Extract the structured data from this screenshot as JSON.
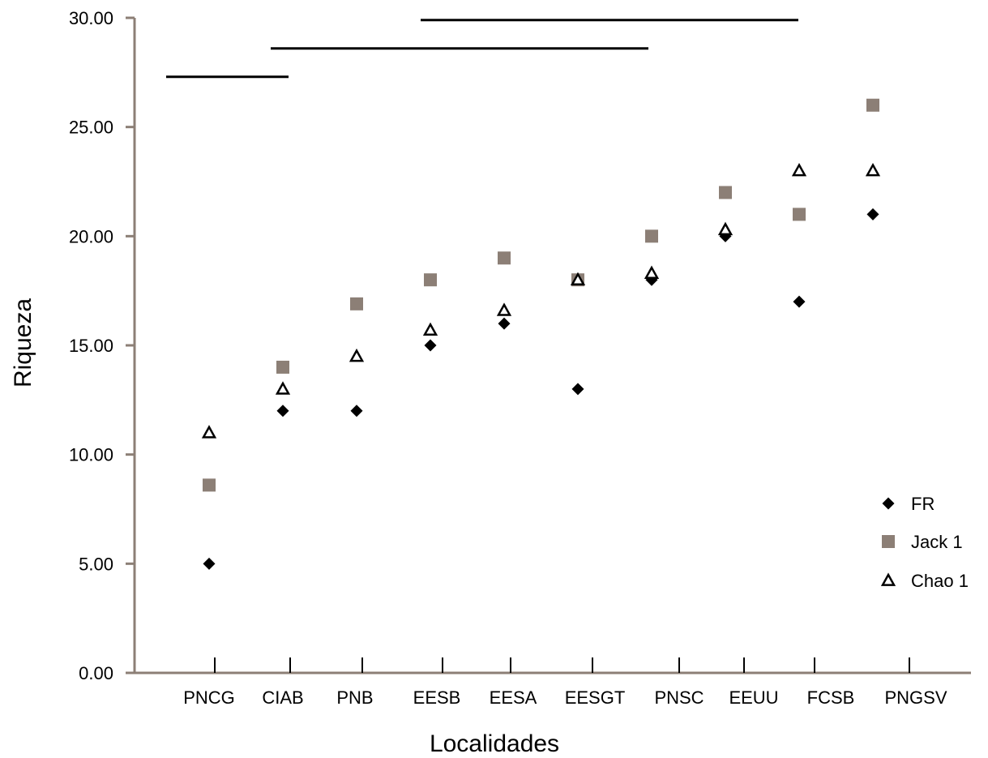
{
  "chart_data": {
    "type": "scatter",
    "title": "",
    "xlabel": "Localidades",
    "ylabel": "Riqueza",
    "categories": [
      "PNCG",
      "CIAB",
      "PNB",
      "EESB",
      "EESA",
      "EESGT",
      "PNSC",
      "EEUU",
      "FCSB",
      "PNGSV"
    ],
    "ylim": [
      0,
      30
    ],
    "yticks": [
      "0.00",
      "5.00",
      "10.00",
      "15.00",
      "20.00",
      "25.00",
      "30.00"
    ],
    "grid": false,
    "legend_position": "bottom-right",
    "series": [
      {
        "name": "FR",
        "marker": "diamond",
        "color": "#000000",
        "values": [
          5,
          12,
          12,
          15,
          16,
          13,
          18,
          20,
          17,
          21
        ]
      },
      {
        "name": "Jack 1",
        "marker": "square",
        "color": "#8c7f76",
        "values": [
          8.6,
          14,
          16.9,
          18,
          19,
          18,
          20,
          22,
          21,
          26
        ]
      },
      {
        "name": "Chao 1",
        "marker": "triangle",
        "color": "#000000",
        "values": [
          11,
          13,
          14.5,
          15.7,
          16.6,
          18,
          18.3,
          20.3,
          23,
          23
        ]
      }
    ],
    "group_lines": [
      {
        "from": "PNCG",
        "to": "CIAB",
        "y": 27.3
      },
      {
        "from": "CIAB",
        "to": "PNSC",
        "y": 28.6
      },
      {
        "from": "EESB",
        "to": "FCSB",
        "y": 29.9
      }
    ]
  }
}
